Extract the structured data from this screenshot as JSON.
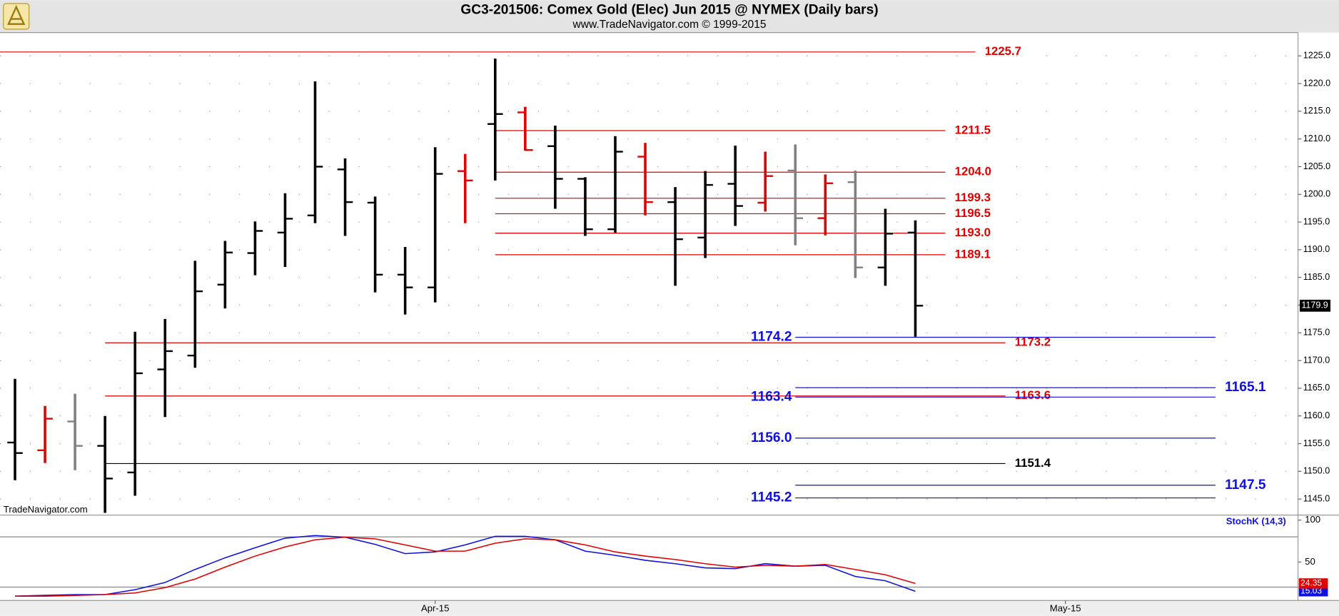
{
  "chart_data": [
    {
      "type": "ohlc",
      "title": "GC3-201506:  Comex Gold (Elec) Jun 2015 @ NYMEX  (Daily bars)",
      "subtitle": "www.TradeNavigator.com © 1999-2015",
      "watermark": "TradeNavigator.com",
      "categories": [
        null,
        null,
        null,
        null,
        null,
        null,
        null,
        null,
        null,
        null,
        null,
        null,
        null,
        null,
        null,
        null,
        null,
        null,
        null,
        null,
        null,
        null,
        null,
        null,
        null,
        null,
        null,
        null,
        null,
        null,
        null
      ],
      "open": [
        1155.2,
        1153.8,
        1159.0,
        1154.6,
        1149.8,
        1168.4,
        1170.9,
        1183.7,
        1189.4,
        1193.1,
        1196.2,
        1204.5,
        1198.5,
        1185.5,
        1183.2,
        1204.2,
        1212.7,
        1214.8,
        1208.7,
        1202.8,
        1193.7,
        1206.8,
        1198.6,
        1192.2,
        1201.9,
        1198.5,
        1204.3,
        1195.7,
        1202.2,
        1186.8,
        1193.1
      ],
      "high": [
        1166.7,
        1161.8,
        1164.0,
        1160.0,
        1175.2,
        1177.5,
        1188.0,
        1191.6,
        1195.1,
        1200.2,
        1220.4,
        1206.5,
        1199.6,
        1190.5,
        1208.5,
        1207.3,
        1224.5,
        1215.8,
        1212.4,
        1203.1,
        1210.5,
        1209.3,
        1201.3,
        1204.2,
        1208.8,
        1207.7,
        1209.0,
        1203.6,
        1204.3,
        1197.4,
        1195.3
      ],
      "low": [
        1148.4,
        1151.5,
        1150.2,
        1142.5,
        1145.6,
        1159.8,
        1168.7,
        1179.4,
        1185.4,
        1186.9,
        1194.8,
        1192.5,
        1182.3,
        1178.3,
        1180.5,
        1194.8,
        1202.5,
        1207.9,
        1197.4,
        1192.5,
        1193.1,
        1196.2,
        1183.5,
        1188.5,
        1194.3,
        1196.9,
        1190.8,
        1192.6,
        1184.9,
        1183.5,
        1174.3
      ],
      "close": [
        1153.3,
        1159.5,
        1154.6,
        1148.7,
        1167.7,
        1171.7,
        1182.5,
        1189.5,
        1193.4,
        1195.6,
        1205.0,
        1198.6,
        1185.5,
        1183.2,
        1203.7,
        1202.5,
        1214.5,
        1208.0,
        1202.8,
        1193.7,
        1207.7,
        1198.6,
        1191.9,
        1201.7,
        1197.9,
        1203.3,
        1195.7,
        1202.0,
        1186.8,
        1192.9,
        1179.9
      ],
      "colors": [
        "#000000",
        "#e00000",
        "#808080",
        "#000000",
        "#000000",
        "#000000",
        "#000000",
        "#000000",
        "#000000",
        "#000000",
        "#000000",
        "#000000",
        "#000000",
        "#000000",
        "#000000",
        "#e00000",
        "#000000",
        "#e00000",
        "#000000",
        "#000000",
        "#000000",
        "#e00000",
        "#000000",
        "#000000",
        "#000000",
        "#e00000",
        "#808080",
        "#e00000",
        "#808080",
        "#000000",
        "#000000"
      ],
      "xlim": [
        -0.5,
        42.75
      ],
      "xticks": [
        {
          "value": 14,
          "label": "Apr-15"
        },
        {
          "value": 35,
          "label": "May-15"
        }
      ],
      "ylim": [
        1142.1,
        1229.2
      ],
      "yticks": [
        {
          "value": 1145,
          "label": "1145.0"
        },
        {
          "value": 1150,
          "label": "1150.0"
        },
        {
          "value": 1155,
          "label": "1155.0"
        },
        {
          "value": 1160,
          "label": "1160.0"
        },
        {
          "value": 1165,
          "label": "1165.0"
        },
        {
          "value": 1170,
          "label": "1170.0"
        },
        {
          "value": 1175,
          "label": "1175.0"
        },
        {
          "value": 1180,
          "label": "1180.0"
        },
        {
          "value": 1185,
          "label": "1185.0"
        },
        {
          "value": 1190,
          "label": "1190.0"
        },
        {
          "value": 1195,
          "label": "1195.0"
        },
        {
          "value": 1200,
          "label": "1200.0"
        },
        {
          "value": 1205,
          "label": "1205.0"
        },
        {
          "value": 1210,
          "label": "1210.0"
        },
        {
          "value": 1215,
          "label": "1215.0"
        },
        {
          "value": 1220,
          "label": "1220.0"
        },
        {
          "value": 1225,
          "label": "1225.0"
        }
      ],
      "grid": true,
      "levels": [
        {
          "value": 1225.7,
          "label": "1225.7",
          "color": "#e00000",
          "from": -0.5,
          "to": 32,
          "label_side": "right"
        },
        {
          "value": 1211.5,
          "label": "1211.5",
          "color": "#e00000",
          "from": 16,
          "to": 31,
          "label_side": "right"
        },
        {
          "value": 1204,
          "label": "1204.0",
          "color": "#e00000",
          "from": 16,
          "to": 31,
          "label_side": "right"
        },
        {
          "value": 1199.3,
          "label": "1199.3",
          "color": "#e00000",
          "from": 16,
          "to": 31,
          "label_side": "right"
        },
        {
          "value": 1196.5,
          "label": "1196.5",
          "color": "#e00000",
          "from": 16,
          "to": 31,
          "label_side": "right"
        },
        {
          "value": 1193,
          "label": "1193.0",
          "color": "#e00000",
          "from": 16,
          "to": 31,
          "label_side": "right"
        },
        {
          "value": 1189.1,
          "label": "1189.1",
          "color": "#e00000",
          "from": 16,
          "to": 31,
          "label_side": "right"
        },
        {
          "value": 1173.2,
          "label": "1173.2",
          "color": "#e00000",
          "from": 3,
          "to": 33,
          "label_side": "right"
        },
        {
          "value": 1163.6,
          "label": "1163.6",
          "color": "#e00000",
          "from": 3,
          "to": 33,
          "label_side": "right"
        },
        {
          "value": 1151.4,
          "label": "1151.4",
          "color": "#000000",
          "from": 3,
          "to": 33,
          "label_side": "right"
        },
        {
          "value": 1174.2,
          "label": "1174.2",
          "color": "#1010e0",
          "from": 26,
          "to": 40,
          "label_side": "left"
        },
        {
          "value": 1165.1,
          "label": "1165.1",
          "color": "#1010e0",
          "from": 26,
          "to": 40,
          "label_side": "right"
        },
        {
          "value": 1163.4,
          "label": "1163.4",
          "color": "#1010e0",
          "from": 26,
          "to": 40,
          "label_side": "left"
        },
        {
          "value": 1156,
          "label": "1156.0",
          "color": "#1010e0",
          "from": 26,
          "to": 40,
          "label_side": "left"
        },
        {
          "value": 1147.5,
          "label": "1147.5",
          "color": "#1010e0",
          "from": 26,
          "to": 40,
          "label_side": "right"
        },
        {
          "value": 1145.2,
          "label": "1145.2",
          "color": "#1010e0",
          "from": 26,
          "to": 40,
          "label_side": "left"
        }
      ]
    },
    {
      "type": "line",
      "title": "StochK (14,3)",
      "xlim": [
        -0.5,
        42.75
      ],
      "ylim": [
        4,
        106
      ],
      "yticks": [
        50,
        100
      ],
      "levels": [
        80,
        20
      ],
      "series": [
        {
          "color": "#1010e0",
          "values": [
            9.2,
            10.2,
            11,
            11,
            17,
            25.5,
            41,
            55,
            67,
            78.5,
            81.6,
            79.6,
            71,
            60,
            62,
            70.4,
            80.6,
            80.6,
            76.5,
            63,
            58,
            52,
            48,
            43,
            42,
            48,
            45,
            46,
            32.7,
            27.6,
            15.03
          ]
        },
        {
          "color": "#e00000",
          "values": [
            9.2,
            9.2,
            10,
            11,
            13,
            19.4,
            29.6,
            43.9,
            57,
            68,
            76.5,
            79.6,
            77.6,
            70.4,
            63,
            63,
            72.4,
            77.6,
            76.5,
            70.4,
            62,
            57,
            53,
            48,
            43.9,
            46,
            45,
            47,
            41,
            34.7,
            24.35
          ]
        }
      ]
    }
  ]
}
